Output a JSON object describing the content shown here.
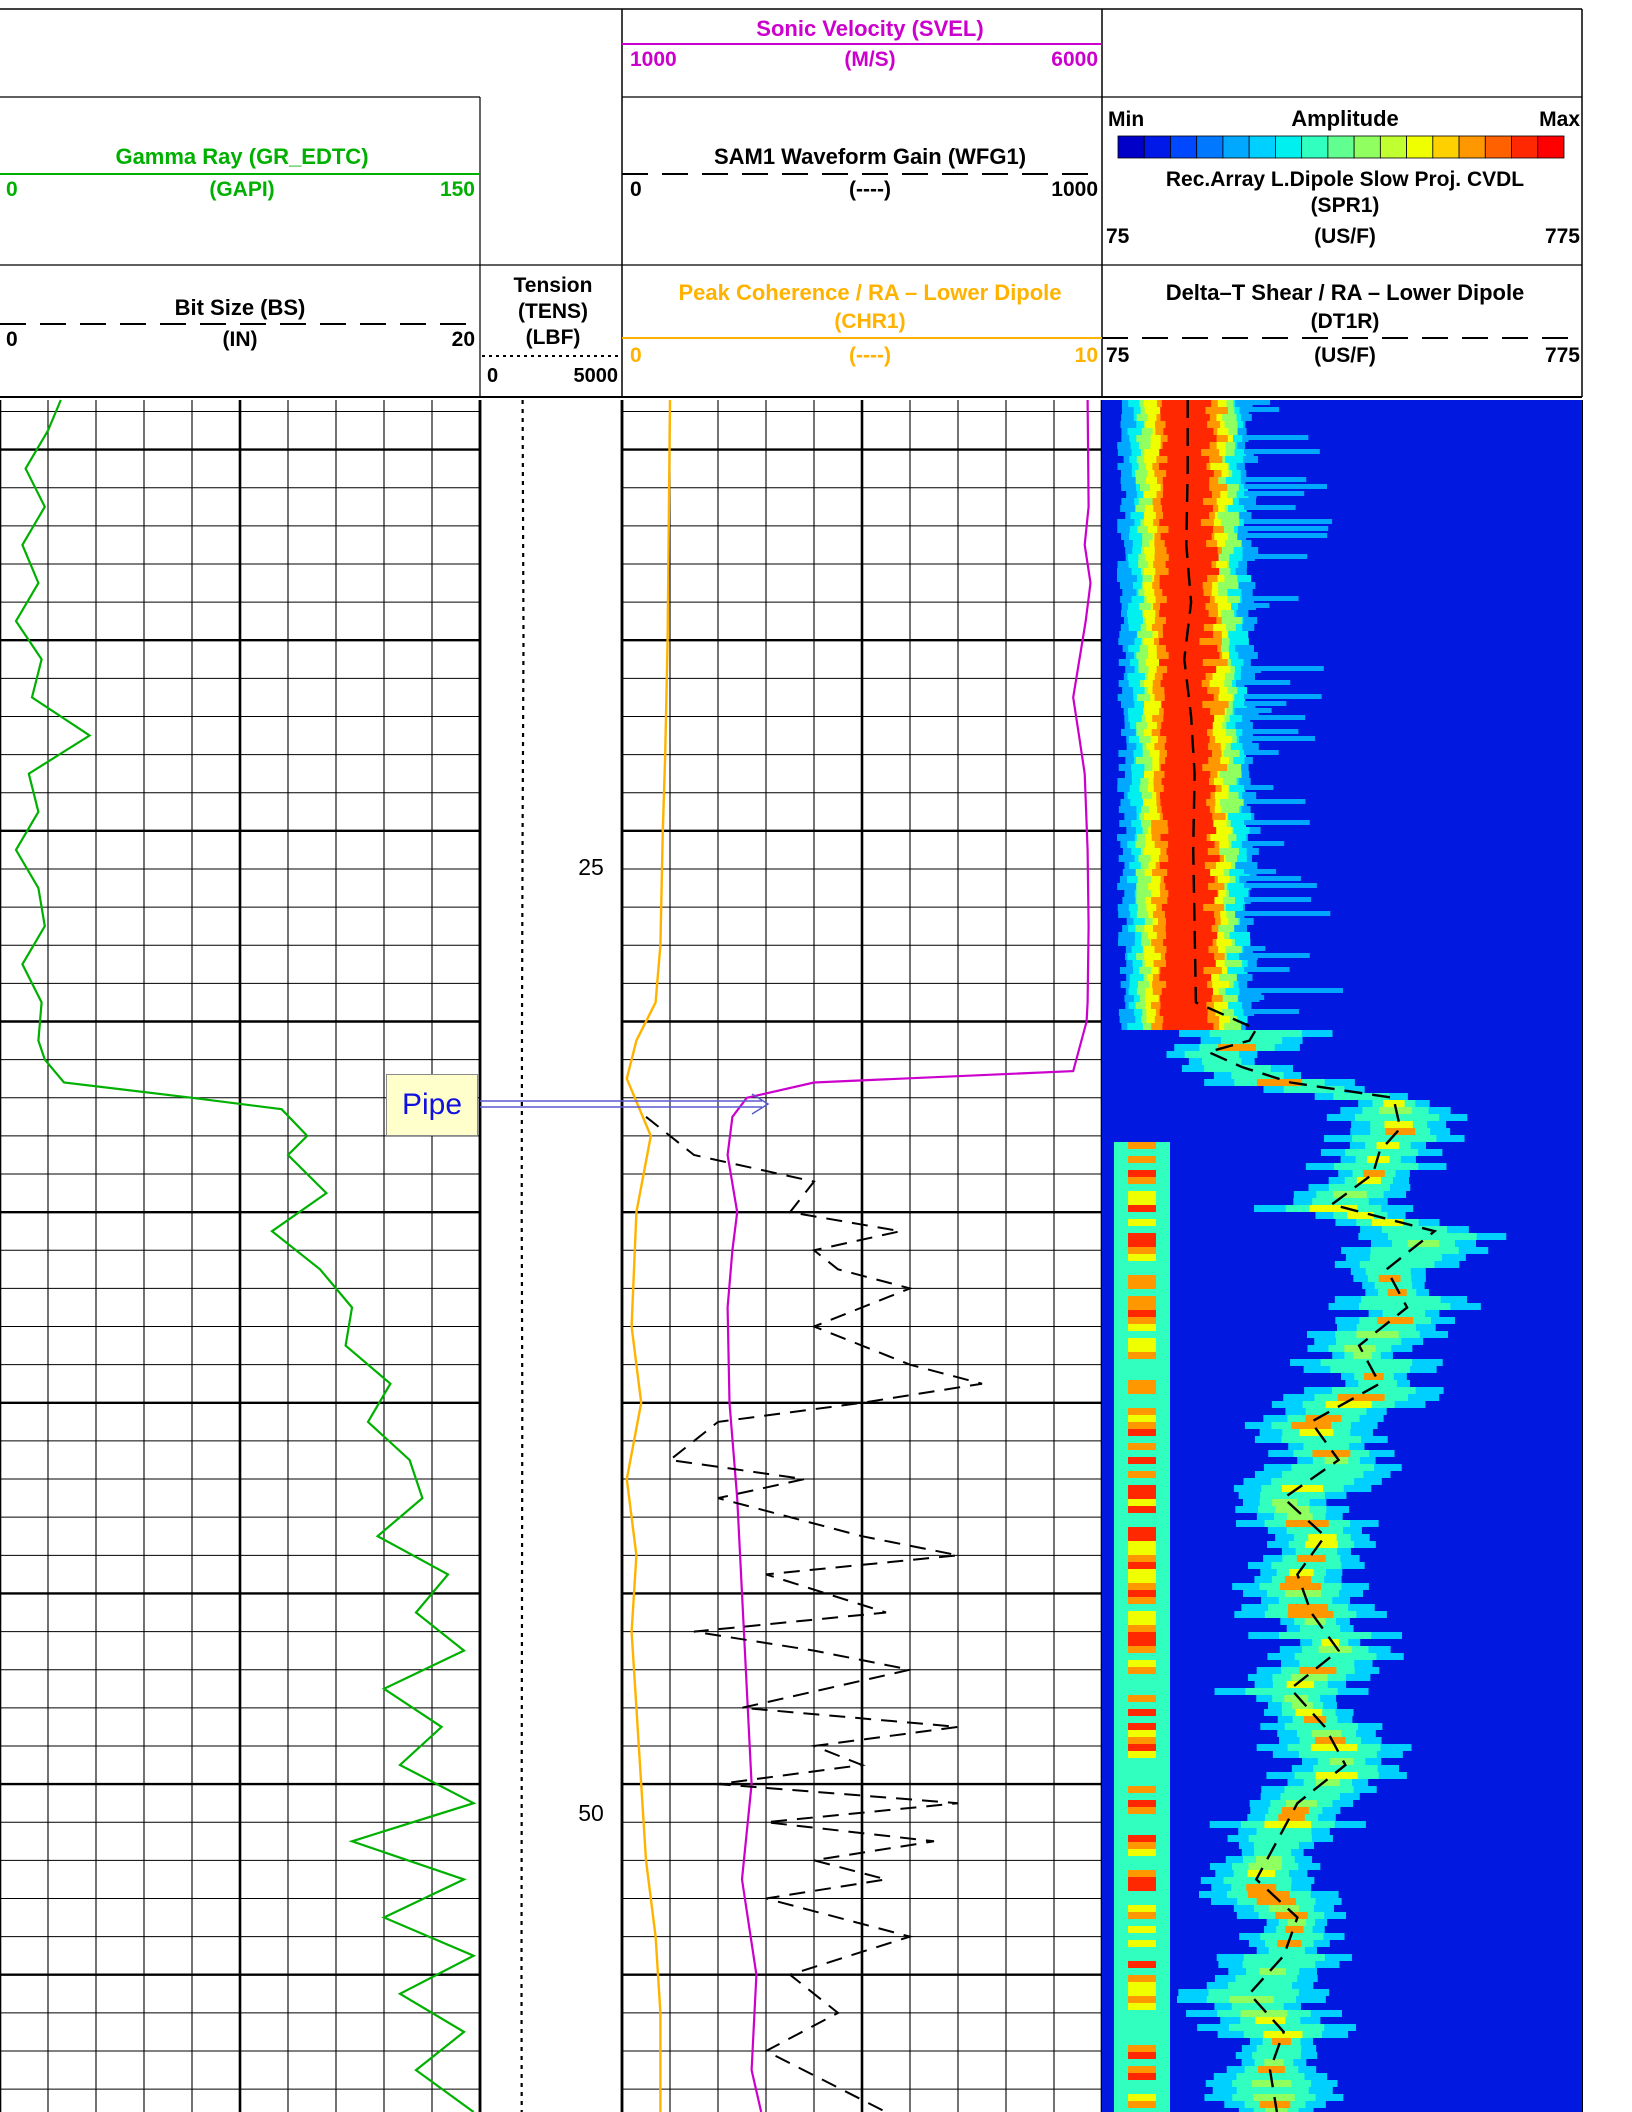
{
  "tracks": {
    "sonic_velocity": {
      "title": "Sonic Velocity (SVEL)",
      "unit": "(M/S)",
      "min": "1000",
      "max": "6000",
      "color": "#cc00cc"
    },
    "gamma_ray": {
      "title": "Gamma Ray (GR_EDTC)",
      "unit": "(GAPI)",
      "min": "0",
      "max": "150",
      "color": "#00b000"
    },
    "waveform_gain": {
      "title": "SAM1 Waveform Gain (WFG1)",
      "unit": "(----)",
      "min": "0",
      "max": "1000",
      "color": "#000000"
    },
    "amplitude_scale": {
      "min_label": "Min",
      "title": "Amplitude",
      "max_label": "Max"
    },
    "cvdl": {
      "title": "Rec.Array L.Dipole Slow Proj. CVDL",
      "mnemonic": "(SPR1)",
      "unit": "(US/F)",
      "min": "75",
      "max": "775"
    },
    "bit_size": {
      "title": "Bit Size (BS)",
      "unit": "(IN)",
      "min": "0",
      "max": "20",
      "color": "#000000"
    },
    "tension": {
      "title": "Tension",
      "mnemonic": "(TENS)",
      "unit": "(LBF)",
      "min": "0",
      "max": "5000"
    },
    "peak_coherence": {
      "title": "Peak Coherence / RA – Lower Dipole",
      "mnemonic": "(CHR1)",
      "unit": "(----)",
      "min": "0",
      "max": "10",
      "color": "#ffb300"
    },
    "dt_shear": {
      "title": "Delta–T Shear / RA – Lower Dipole",
      "mnemonic": "(DT1R)",
      "unit": "(US/F)",
      "min": "75",
      "max": "775"
    }
  },
  "depth_labels": [
    "25",
    "50"
  ],
  "annotation": {
    "label": "Pipe"
  },
  "colors": {
    "amplitude_scale": [
      "#0000c8",
      "#0018e8",
      "#0048ff",
      "#0078ff",
      "#00a8ff",
      "#00d0ff",
      "#00f0f0",
      "#30ffc0",
      "#60ff90",
      "#90ff60",
      "#c0ff30",
      "#f0ff00",
      "#ffd000",
      "#ff9800",
      "#ff6000",
      "#ff2800",
      "#ff0000"
    ],
    "grid": "#000000"
  },
  "chart_data": {
    "type": "line",
    "depth_axis": {
      "labels": [
        25,
        50
      ],
      "direction": "down",
      "range": [
        13.7,
        58.6
      ]
    },
    "pipe_bottom_depth": 31.4,
    "series": [
      {
        "name": "Gamma Ray (GR_EDTC)",
        "unit": "GAPI",
        "range": [
          0,
          150
        ],
        "points": [
          [
            13.7,
            19
          ],
          [
            14.5,
            15
          ],
          [
            15.5,
            8
          ],
          [
            16.5,
            14
          ],
          [
            17.5,
            7
          ],
          [
            18.5,
            12
          ],
          [
            19.5,
            5
          ],
          [
            20.5,
            13
          ],
          [
            21.5,
            10
          ],
          [
            22.5,
            28
          ],
          [
            23.5,
            9
          ],
          [
            24.5,
            12
          ],
          [
            25.5,
            5
          ],
          [
            26.5,
            12
          ],
          [
            27.5,
            14
          ],
          [
            28.5,
            7
          ],
          [
            29.5,
            13
          ],
          [
            30.5,
            12
          ],
          [
            31.0,
            14
          ],
          [
            31.6,
            20
          ],
          [
            32.0,
            60
          ],
          [
            32.3,
            88
          ],
          [
            33.0,
            96
          ],
          [
            33.5,
            90
          ],
          [
            34.5,
            102
          ],
          [
            35.5,
            85
          ],
          [
            36.5,
            100
          ],
          [
            37.5,
            110
          ],
          [
            38.5,
            108
          ],
          [
            39.5,
            122
          ],
          [
            40.5,
            115
          ],
          [
            41.5,
            128
          ],
          [
            42.5,
            132
          ],
          [
            43.5,
            118
          ],
          [
            44.5,
            140
          ],
          [
            45.5,
            130
          ],
          [
            46.5,
            145
          ],
          [
            47.5,
            120
          ],
          [
            48.5,
            138
          ],
          [
            49.5,
            125
          ],
          [
            50.5,
            148
          ],
          [
            51.5,
            110
          ],
          [
            52.5,
            145
          ],
          [
            53.5,
            120
          ],
          [
            54.5,
            148
          ],
          [
            55.5,
            125
          ],
          [
            56.5,
            145
          ],
          [
            57.5,
            130
          ],
          [
            58.6,
            148
          ]
        ]
      },
      {
        "name": "Bit Size (BS)",
        "unit": "IN",
        "range": [
          0,
          20
        ],
        "points": [
          [
            13.7,
            0
          ],
          [
            58.6,
            0
          ]
        ]
      },
      {
        "name": "Tension (TENS)",
        "unit": "LBF",
        "range": [
          0,
          5000
        ],
        "points": [
          [
            13.7,
            1500
          ],
          [
            20,
            1530
          ],
          [
            25,
            1500
          ],
          [
            30,
            1480
          ],
          [
            35,
            1470
          ],
          [
            40,
            1490
          ],
          [
            45,
            1480
          ],
          [
            50,
            1470
          ],
          [
            55,
            1460
          ],
          [
            58.6,
            1470
          ]
        ]
      },
      {
        "name": "Sonic Velocity (SVEL)",
        "unit": "M/S",
        "range": [
          1000,
          6000
        ],
        "points": [
          [
            13.7,
            5850
          ],
          [
            16.5,
            5860
          ],
          [
            17.5,
            5820
          ],
          [
            18.5,
            5880
          ],
          [
            19.5,
            5830
          ],
          [
            21.5,
            5700
          ],
          [
            22.5,
            5760
          ],
          [
            23.5,
            5820
          ],
          [
            25.5,
            5850
          ],
          [
            27.5,
            5860
          ],
          [
            29.5,
            5850
          ],
          [
            30.0,
            5840
          ],
          [
            31.3,
            5700
          ],
          [
            31.6,
            3000
          ],
          [
            32.0,
            2300
          ],
          [
            32.5,
            2150
          ],
          [
            33.5,
            2100
          ],
          [
            35.0,
            2200
          ],
          [
            36.0,
            2150
          ],
          [
            37.5,
            2100
          ],
          [
            40.0,
            2120
          ],
          [
            42.5,
            2200
          ],
          [
            45.0,
            2250
          ],
          [
            47.5,
            2300
          ],
          [
            50.0,
            2350
          ],
          [
            52.5,
            2250
          ],
          [
            55.0,
            2400
          ],
          [
            57.5,
            2350
          ],
          [
            58.6,
            2450
          ]
        ]
      },
      {
        "name": "SAM1 Waveform Gain (WFG1)",
        "unit": "----",
        "range": [
          0,
          1000
        ],
        "points": [
          [
            32.5,
            50
          ],
          [
            33.5,
            150
          ],
          [
            34.2,
            400
          ],
          [
            35.0,
            350
          ],
          [
            35.5,
            580
          ],
          [
            36.0,
            400
          ],
          [
            36.5,
            450
          ],
          [
            37.0,
            600
          ],
          [
            38.0,
            400
          ],
          [
            39.0,
            600
          ],
          [
            39.5,
            750
          ],
          [
            40.0,
            500
          ],
          [
            40.5,
            200
          ],
          [
            41.5,
            100
          ],
          [
            42.0,
            380
          ],
          [
            42.5,
            200
          ],
          [
            43.5,
            500
          ],
          [
            44.0,
            700
          ],
          [
            44.5,
            300
          ],
          [
            45.5,
            550
          ],
          [
            46.0,
            150
          ],
          [
            46.5,
            400
          ],
          [
            47.0,
            600
          ],
          [
            48.0,
            250
          ],
          [
            48.5,
            700
          ],
          [
            49.0,
            400
          ],
          [
            49.5,
            500
          ],
          [
            50.0,
            200
          ],
          [
            50.5,
            700
          ],
          [
            51.0,
            300
          ],
          [
            51.5,
            650
          ],
          [
            52.0,
            400
          ],
          [
            52.5,
            550
          ],
          [
            53.0,
            300
          ],
          [
            54.0,
            600
          ],
          [
            55.0,
            350
          ],
          [
            56.0,
            450
          ],
          [
            57.0,
            300
          ],
          [
            58.6,
            550
          ]
        ]
      },
      {
        "name": "Peak Coherence / RA - Lower Dipole (CHR1)",
        "unit": "----",
        "range": [
          0,
          10
        ],
        "points": [
          [
            13.7,
            1.0
          ],
          [
            20,
            0.95
          ],
          [
            23,
            0.9
          ],
          [
            25,
            0.85
          ],
          [
            28,
            0.8
          ],
          [
            29.5,
            0.7
          ],
          [
            30.5,
            0.3
          ],
          [
            31.5,
            0.1
          ],
          [
            33.0,
            0.6
          ],
          [
            35.0,
            0.3
          ],
          [
            38.0,
            0.2
          ],
          [
            40.0,
            0.4
          ],
          [
            42.0,
            0.1
          ],
          [
            44.0,
            0.3
          ],
          [
            46.0,
            0.2
          ],
          [
            48.0,
            0.3
          ],
          [
            50.0,
            0.4
          ],
          [
            52.0,
            0.5
          ],
          [
            54.0,
            0.7
          ],
          [
            56.0,
            0.8
          ],
          [
            58.6,
            0.8
          ]
        ]
      },
      {
        "name": "Delta-T Shear / RA - Lower Dipole (DT1R)",
        "unit": "US/F",
        "range": [
          75,
          775
        ],
        "points": [
          [
            13.7,
            200
          ],
          [
            15.5,
            200
          ],
          [
            17.5,
            198
          ],
          [
            19.0,
            205
          ],
          [
            20.5,
            195
          ],
          [
            22.0,
            205
          ],
          [
            23.5,
            210
          ],
          [
            25.5,
            208
          ],
          [
            27.5,
            210
          ],
          [
            29.5,
            212
          ],
          [
            30.2,
            300
          ],
          [
            30.5,
            290
          ],
          [
            30.8,
            230
          ],
          [
            31.2,
            280
          ],
          [
            31.6,
            350
          ],
          [
            32.0,
            500
          ],
          [
            32.8,
            510
          ],
          [
            33.4,
            480
          ],
          [
            34.0,
            470
          ],
          [
            34.8,
            410
          ],
          [
            35.5,
            560
          ],
          [
            36.5,
            490
          ],
          [
            37.5,
            520
          ],
          [
            38.5,
            450
          ],
          [
            39.5,
            480
          ],
          [
            40.5,
            380
          ],
          [
            41.5,
            420
          ],
          [
            42.5,
            340
          ],
          [
            43.5,
            400
          ],
          [
            44.5,
            360
          ],
          [
            45.5,
            380
          ],
          [
            46.5,
            420
          ],
          [
            47.5,
            350
          ],
          [
            48.5,
            400
          ],
          [
            49.5,
            430
          ],
          [
            50.5,
            360
          ],
          [
            51.5,
            330
          ],
          [
            52.5,
            300
          ],
          [
            53.5,
            360
          ],
          [
            54.5,
            340
          ],
          [
            55.5,
            290
          ],
          [
            56.5,
            340
          ],
          [
            57.5,
            320
          ],
          [
            58.6,
            330
          ]
        ]
      }
    ]
  }
}
